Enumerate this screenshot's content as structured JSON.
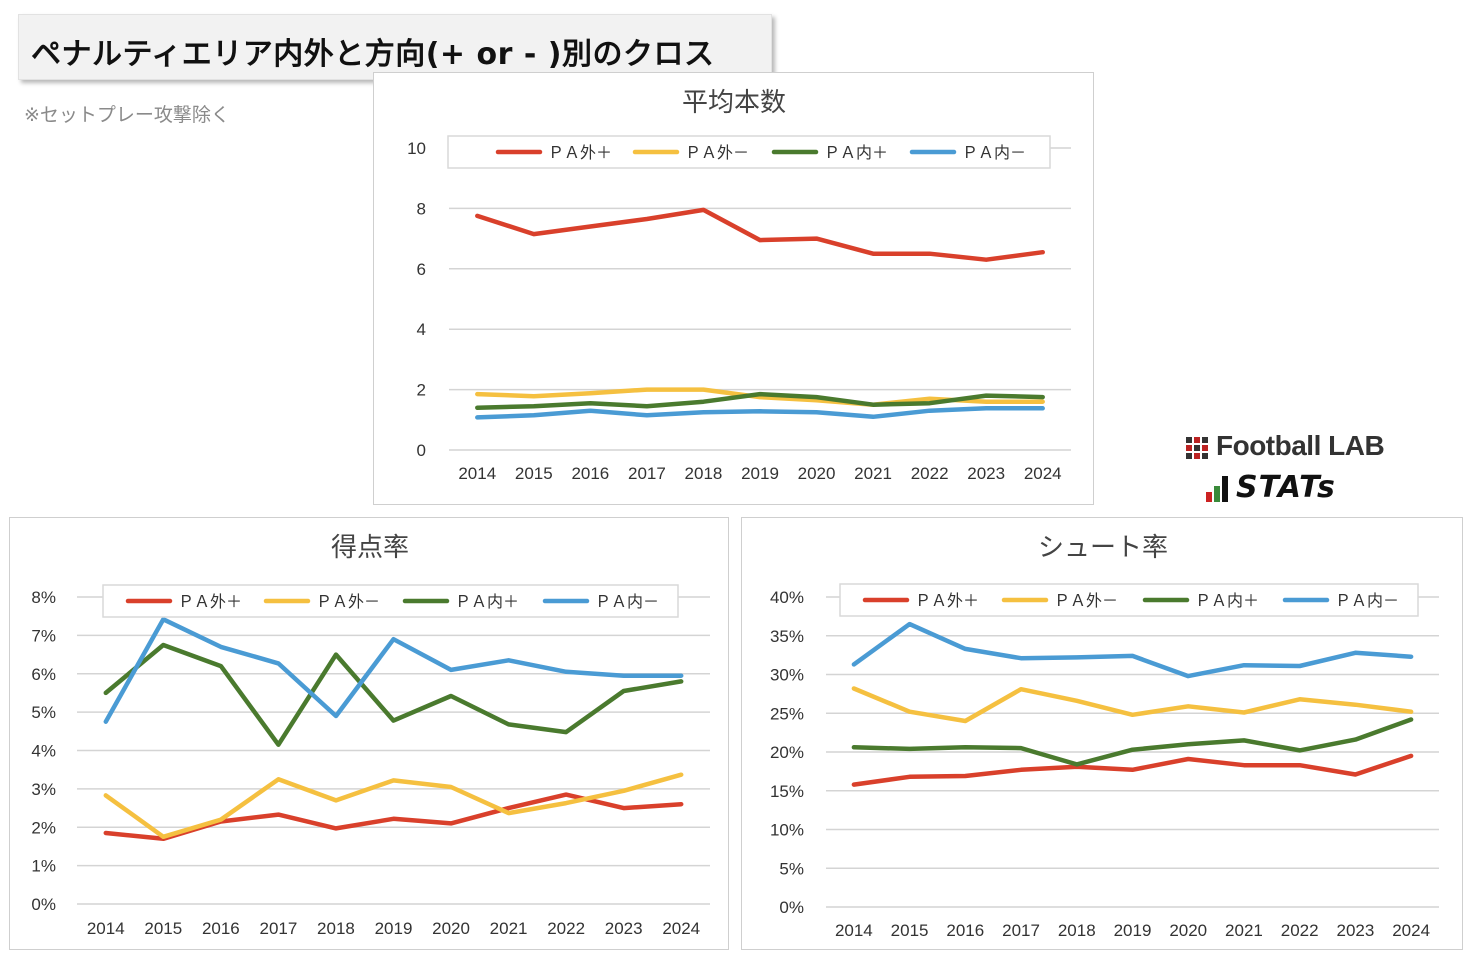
{
  "header": {
    "title": "ペナルティエリア内外と方向(+ or - )別のクロス",
    "note": "※セットプレー攻撃除く"
  },
  "brand": {
    "name": "Football LAB",
    "stats_label": "STATs"
  },
  "colors": {
    "pa_out_plus": "#d9402b",
    "pa_out_minus": "#f5c040",
    "pa_in_plus": "#4a7a2e",
    "pa_in_minus": "#4a9bd4"
  },
  "chart_data": [
    {
      "type": "line",
      "title": "平均本数",
      "x": [
        "2014",
        "2015",
        "2016",
        "2017",
        "2018",
        "2019",
        "2020",
        "2021",
        "2022",
        "2023",
        "2024"
      ],
      "ylim": [
        0,
        10
      ],
      "yticks": [
        "0",
        "2",
        "4",
        "6",
        "8",
        "10"
      ],
      "legend": "top",
      "grid": true,
      "series": [
        {
          "name": "ＰＡ外＋",
          "values": [
            7.75,
            7.15,
            7.4,
            7.65,
            7.95,
            6.95,
            7.0,
            6.5,
            6.5,
            6.3,
            6.55
          ]
        },
        {
          "name": "ＰＡ外－",
          "values": [
            1.85,
            1.78,
            1.88,
            2.0,
            2.0,
            1.75,
            1.65,
            1.5,
            1.7,
            1.6,
            1.6
          ]
        },
        {
          "name": "ＰＡ内＋",
          "values": [
            1.4,
            1.45,
            1.55,
            1.45,
            1.6,
            1.85,
            1.75,
            1.5,
            1.55,
            1.8,
            1.75
          ]
        },
        {
          "name": "ＰＡ内－",
          "values": [
            1.08,
            1.15,
            1.3,
            1.15,
            1.25,
            1.28,
            1.25,
            1.1,
            1.3,
            1.38,
            1.38
          ]
        }
      ]
    },
    {
      "type": "line",
      "title": "得点率",
      "x": [
        "2014",
        "2015",
        "2016",
        "2017",
        "2018",
        "2019",
        "2020",
        "2021",
        "2022",
        "2023",
        "2024"
      ],
      "ylim": [
        0,
        8
      ],
      "yticks": [
        "0%",
        "1%",
        "2%",
        "3%",
        "4%",
        "5%",
        "6%",
        "7%",
        "8%"
      ],
      "legend": "top",
      "grid": true,
      "series": [
        {
          "name": "ＰＡ外＋",
          "values": [
            1.85,
            1.7,
            2.15,
            2.33,
            1.97,
            2.22,
            2.1,
            2.5,
            2.85,
            2.5,
            2.6
          ]
        },
        {
          "name": "ＰＡ外－",
          "values": [
            2.83,
            1.75,
            2.2,
            3.25,
            2.7,
            3.22,
            3.05,
            2.37,
            2.63,
            2.95,
            3.37
          ]
        },
        {
          "name": "ＰＡ内＋",
          "values": [
            5.5,
            6.75,
            6.2,
            4.15,
            6.5,
            4.78,
            5.42,
            4.68,
            4.48,
            5.55,
            5.8
          ]
        },
        {
          "name": "ＰＡ内－",
          "values": [
            4.75,
            7.42,
            6.7,
            6.27,
            4.9,
            6.9,
            6.1,
            6.35,
            6.05,
            5.95,
            5.95
          ]
        }
      ]
    },
    {
      "type": "line",
      "title": "シュート率",
      "x": [
        "2014",
        "2015",
        "2016",
        "2017",
        "2018",
        "2019",
        "2020",
        "2021",
        "2022",
        "2023",
        "2024"
      ],
      "ylim": [
        0,
        40
      ],
      "yticks": [
        "0%",
        "5%",
        "10%",
        "15%",
        "20%",
        "25%",
        "30%",
        "35%",
        "40%"
      ],
      "legend": "top",
      "grid": true,
      "series": [
        {
          "name": "ＰＡ外＋",
          "values": [
            15.8,
            16.8,
            16.9,
            17.7,
            18.1,
            17.7,
            19.1,
            18.3,
            18.3,
            17.1,
            19.5
          ]
        },
        {
          "name": "ＰＡ外－",
          "values": [
            28.2,
            25.2,
            24.0,
            28.1,
            26.6,
            24.8,
            25.9,
            25.1,
            26.8,
            26.1,
            25.2
          ]
        },
        {
          "name": "ＰＡ内＋",
          "values": [
            20.6,
            20.4,
            20.6,
            20.5,
            18.4,
            20.3,
            21.0,
            21.5,
            20.2,
            21.6,
            24.2
          ]
        },
        {
          "name": "ＰＡ内－",
          "values": [
            31.3,
            36.5,
            33.3,
            32.1,
            32.2,
            32.4,
            29.8,
            31.2,
            31.1,
            32.8,
            32.3
          ]
        }
      ]
    }
  ]
}
